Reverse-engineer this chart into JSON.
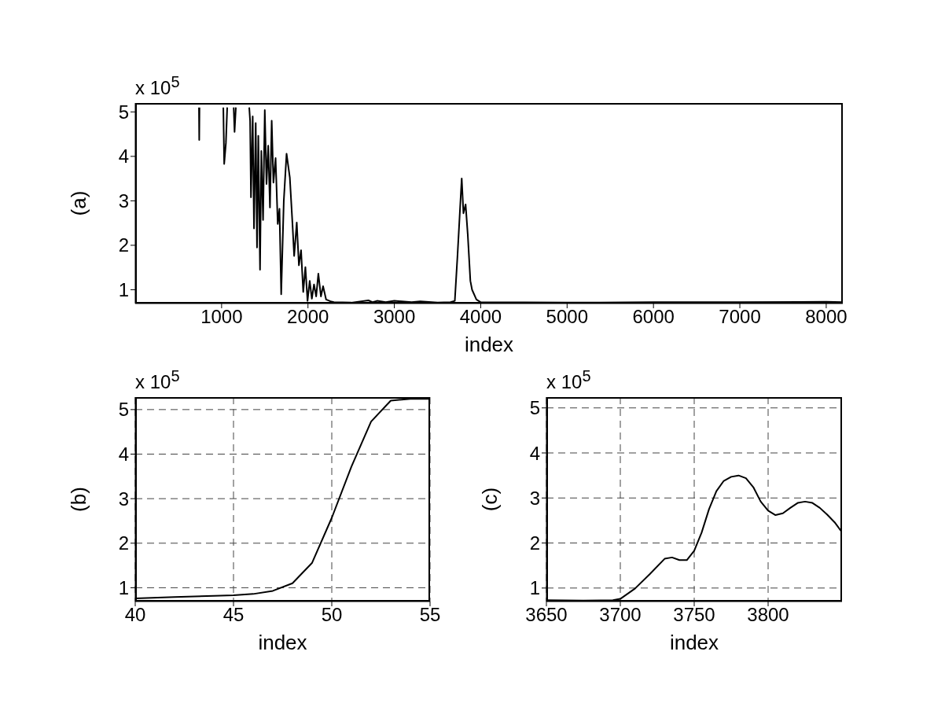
{
  "chart_data": [
    {
      "type": "line",
      "ylabel": "(a)",
      "xlabel": "index",
      "annotations": [
        "x 10$^{5}$"
      ],
      "xlim": [
        0,
        8192
      ],
      "xticks": [
        1000,
        2000,
        3000,
        4000,
        5000,
        6000,
        7000,
        8000
      ],
      "ylim": [
        0.69,
        5.2
      ],
      "yticks": [
        1,
        2,
        3,
        4,
        5
      ],
      "grid": false,
      "line_style": "solid",
      "series": [
        {
          "color": "#000000",
          "x": [
            738,
            741,
            744,
            760,
            1020,
            1030,
            1050,
            1065,
            1080,
            1140,
            1150,
            1165,
            1200,
            1320,
            1330,
            1340,
            1360,
            1375,
            1395,
            1410,
            1425,
            1445,
            1460,
            1480,
            1500,
            1520,
            1540,
            1560,
            1580,
            1600,
            1625,
            1650,
            1670,
            1690,
            1720,
            1752,
            1790,
            1820,
            1840,
            1870,
            1895,
            1920,
            1945,
            1970,
            1995,
            2020,
            2045,
            2070,
            2095,
            2120,
            2150,
            2175,
            2210,
            2260,
            2300,
            2500,
            2700,
            2750,
            2800,
            2900,
            3000,
            3200,
            3300,
            3500,
            3650,
            3700,
            3730,
            3760,
            3780,
            3800,
            3825,
            3850,
            3880,
            3900,
            3950,
            4000,
            5000,
            6000,
            7000,
            8000,
            8192
          ],
          "values": [
            5.1,
            4.37,
            5.1,
            null,
            5.1,
            3.83,
            4.3,
            5.1,
            null,
            5.1,
            4.55,
            5.1,
            null,
            5.1,
            4.8,
            3.08,
            4.9,
            2.38,
            4.75,
            1.95,
            4.46,
            1.45,
            4.12,
            2.57,
            5.04,
            3.38,
            4.24,
            2.85,
            4.8,
            3.41,
            3.96,
            2.48,
            2.82,
            0.9,
            3.0,
            4.06,
            3.52,
            2.5,
            1.76,
            2.51,
            1.55,
            1.89,
            0.95,
            1.51,
            0.75,
            1.2,
            0.8,
            1.12,
            0.85,
            1.36,
            0.85,
            1.08,
            0.78,
            0.74,
            0.72,
            0.71,
            0.76,
            0.72,
            0.75,
            0.72,
            0.75,
            0.72,
            0.74,
            0.71,
            0.72,
            0.75,
            1.73,
            2.8,
            3.5,
            2.72,
            2.92,
            2.24,
            1.2,
            1.0,
            0.78,
            0.72,
            0.71,
            0.72,
            0.72,
            0.73,
            0.72
          ]
        }
      ]
    },
    {
      "type": "line",
      "ylabel": "(b)",
      "xlabel": "index",
      "annotations": [
        "x 10$^{5}$"
      ],
      "xlim": [
        40,
        55
      ],
      "xticks": [
        40,
        45,
        50,
        55
      ],
      "ylim": [
        0.69,
        5.28
      ],
      "yticks": [
        1,
        2,
        3,
        4,
        5
      ],
      "grid": true,
      "line_style": "solid",
      "series": [
        {
          "color": "#000000",
          "x": [
            40,
            42,
            44,
            45,
            46,
            47,
            48,
            49,
            50,
            51,
            52,
            53,
            54,
            55
          ],
          "values": [
            0.76,
            0.79,
            0.82,
            0.83,
            0.86,
            0.93,
            1.1,
            1.56,
            2.57,
            3.72,
            4.73,
            5.2,
            5.24,
            5.24
          ]
        }
      ]
    },
    {
      "type": "line",
      "ylabel": "(c)",
      "xlabel": "index",
      "annotations": [
        "x 10$^{5}$"
      ],
      "xlim": [
        3650,
        3850
      ],
      "xticks": [
        3650,
        3700,
        3750,
        3800
      ],
      "ylim": [
        0.7,
        5.24
      ],
      "yticks": [
        1,
        2,
        3,
        4,
        5
      ],
      "grid": true,
      "line_style": "solid",
      "series": [
        {
          "color": "#000000",
          "x": [
            3650,
            3675,
            3695,
            3700,
            3710,
            3720,
            3730,
            3735,
            3740,
            3745,
            3750,
            3755,
            3760,
            3765,
            3770,
            3775,
            3780,
            3785,
            3790,
            3795,
            3800,
            3805,
            3810,
            3815,
            3820,
            3825,
            3830,
            3835,
            3840,
            3845,
            3850
          ],
          "values": [
            0.73,
            0.72,
            0.73,
            0.76,
            0.99,
            1.31,
            1.65,
            1.68,
            1.62,
            1.62,
            1.83,
            2.23,
            2.75,
            3.15,
            3.38,
            3.47,
            3.5,
            3.44,
            3.24,
            2.92,
            2.72,
            2.62,
            2.66,
            2.78,
            2.89,
            2.92,
            2.89,
            2.78,
            2.63,
            2.46,
            2.24
          ]
        }
      ]
    }
  ]
}
